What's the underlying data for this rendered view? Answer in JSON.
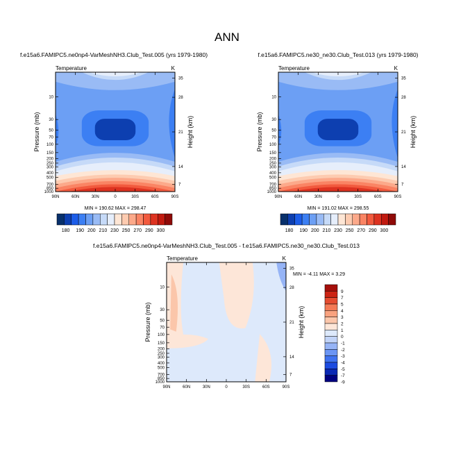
{
  "page": {
    "title": "ANN"
  },
  "colors": {
    "t": [
      "#08306b",
      "#0d3fb0",
      "#1c5de8",
      "#3c7ff3",
      "#6c9ff4",
      "#99bbf5",
      "#c6daf8",
      "#e6eefb",
      "#fee6d5",
      "#fdcbb0",
      "#fca98a",
      "#fa8464",
      "#f25a3e",
      "#dd3321",
      "#c11a10",
      "#8f0a08"
    ],
    "diff": [
      "#000080",
      "#0a28b4",
      "#1c4be0",
      "#3f72f0",
      "#6b95f4",
      "#96b4f6",
      "#c2d4f8",
      "#dde9fb",
      "#fde6d8",
      "#fbc6aa",
      "#f9a27f",
      "#f47a56",
      "#e54c30",
      "#cc2414",
      "#a50f0b"
    ]
  },
  "chart_data": [
    {
      "type": "contour",
      "panel": "left",
      "title": "f.e15a6.FAMIPC5.ne0np4-VarMeshNH3.Club_Test.005 (yrs 1979-1980)",
      "subtitle_left": "Temperature",
      "subtitle_right": "K",
      "xlabel": "",
      "ylabel": "Pressure (mb)",
      "ylabel_right": "Height (km)",
      "x_ticks": [
        "90N",
        "60N",
        "30N",
        "0",
        "30S",
        "60S",
        "90S"
      ],
      "y_ticks": [
        "10",
        "30",
        "50",
        "70",
        "100",
        "150",
        "200",
        "250",
        "300",
        "400",
        "500",
        "700",
        "850",
        "1000"
      ],
      "y_right_ticks": [
        "35",
        "28",
        "21",
        "14",
        "7"
      ],
      "stats": "MIN = 190.62  MAX = 298.47",
      "colorbar_labels": [
        "180",
        "190",
        "200",
        "210",
        "230",
        "250",
        "270",
        "290",
        "300"
      ]
    },
    {
      "type": "contour",
      "panel": "right",
      "title": "f.e15a6.FAMIPC5.ne30_ne30.Club_Test.013 (yrs 1979-1980)",
      "subtitle_left": "Temperature",
      "subtitle_right": "K",
      "xlabel": "",
      "ylabel": "Pressure (mb)",
      "ylabel_right": "Height (km)",
      "x_ticks": [
        "90N",
        "60N",
        "30N",
        "0",
        "30S",
        "60S",
        "90S"
      ],
      "y_ticks": [
        "10",
        "30",
        "50",
        "70",
        "100",
        "150",
        "200",
        "250",
        "300",
        "400",
        "500",
        "700",
        "850",
        "1000"
      ],
      "y_right_ticks": [
        "35",
        "28",
        "21",
        "14",
        "7"
      ],
      "stats": "MIN = 191.02  MAX = 298.55",
      "colorbar_labels": [
        "180",
        "190",
        "200",
        "210",
        "230",
        "250",
        "270",
        "290",
        "300"
      ]
    },
    {
      "type": "contour",
      "panel": "difference",
      "title": "f.e15a6.FAMIPC5.ne0np4-VarMeshNH3.Club_Test.005 - f.e15a6.FAMIPC5.ne30_ne30.Club_Test.013",
      "subtitle_left": "Temperature",
      "subtitle_right": "K",
      "xlabel": "",
      "ylabel": "Pressure (mb)",
      "ylabel_right": "Height (km)",
      "x_ticks": [
        "90N",
        "60N",
        "30N",
        "0",
        "30S",
        "60S",
        "90S"
      ],
      "y_ticks": [
        "10",
        "30",
        "50",
        "70",
        "100",
        "150",
        "200",
        "250",
        "300",
        "400",
        "500",
        "700",
        "850",
        "1000"
      ],
      "y_right_ticks": [
        "35",
        "28",
        "21",
        "14",
        "7"
      ],
      "stats": "MIN =  -4.11  MAX =   3.29",
      "colorbar_labels": [
        "9",
        "7",
        "5",
        "4",
        "3",
        "2",
        "1",
        "0",
        "-1",
        "-2",
        "-3",
        "-4",
        "-5",
        "-7",
        "-9"
      ]
    }
  ]
}
